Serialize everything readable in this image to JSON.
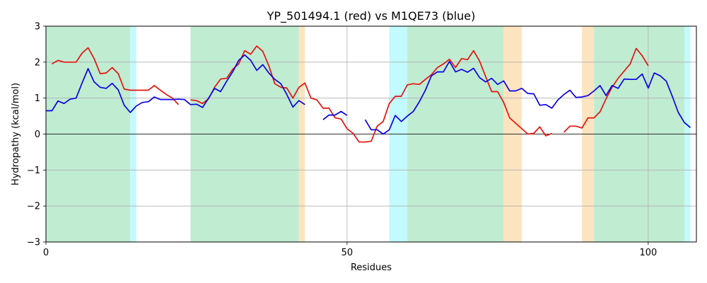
{
  "chart_data": {
    "type": "line",
    "title": "YP_501494.1 (red) vs M1QE73 (blue)",
    "xlabel": "Residues",
    "ylabel": "Hydropathy (kcal/mol)",
    "xlim": [
      0,
      108
    ],
    "ylim": [
      -3,
      3
    ],
    "x_ticks": [
      0,
      50,
      100
    ],
    "y_ticks": [
      -3,
      -2,
      -1,
      0,
      1,
      2,
      3
    ],
    "grid": true,
    "zero_line": true,
    "regions": [
      {
        "start": 0,
        "end": 14,
        "color": "#c0ecd2"
      },
      {
        "start": 14,
        "end": 15,
        "color": "#c2fafe"
      },
      {
        "start": 24,
        "end": 42,
        "color": "#c0ecd2"
      },
      {
        "start": 42,
        "end": 43,
        "color": "#fde4c0"
      },
      {
        "start": 57,
        "end": 60,
        "color": "#c2fafe"
      },
      {
        "start": 60,
        "end": 76,
        "color": "#c0ecd2"
      },
      {
        "start": 76,
        "end": 79,
        "color": "#fde4c0"
      },
      {
        "start": 89,
        "end": 91,
        "color": "#fde4c0"
      },
      {
        "start": 91,
        "end": 106,
        "color": "#c0ecd2"
      },
      {
        "start": 106,
        "end": 107,
        "color": "#c2fafe"
      }
    ],
    "series": [
      {
        "name": "red",
        "color": "#e8120c",
        "x": [
          1,
          2,
          3,
          4,
          5,
          6,
          7,
          8,
          9,
          10,
          11,
          12,
          13,
          14,
          15,
          16,
          17,
          18,
          19,
          20,
          21,
          22,
          null,
          24,
          25,
          26,
          27,
          28,
          29,
          30,
          31,
          32,
          33,
          34,
          35,
          36,
          37,
          38,
          39,
          40,
          41,
          42,
          43,
          44,
          45,
          46,
          47,
          48,
          49,
          50,
          51,
          52,
          53,
          54,
          55,
          56,
          57,
          58,
          59,
          60,
          61,
          62,
          63,
          64,
          65,
          66,
          67,
          68,
          69,
          70,
          71,
          72,
          73,
          74,
          75,
          76,
          77,
          78,
          79,
          80,
          81,
          82,
          83,
          84,
          null,
          86,
          87,
          88,
          89,
          90,
          91,
          92,
          93,
          94,
          95,
          96,
          97,
          98,
          99,
          100
        ],
        "y": [
          1.95,
          2.05,
          2.0,
          2.0,
          2.0,
          2.25,
          2.4,
          2.1,
          1.68,
          1.7,
          1.85,
          1.68,
          1.25,
          1.22,
          1.22,
          1.22,
          1.22,
          1.35,
          1.22,
          1.1,
          1.0,
          0.82,
          null,
          0.95,
          0.93,
          0.85,
          0.98,
          1.3,
          1.53,
          1.55,
          1.8,
          1.95,
          2.32,
          2.22,
          2.45,
          2.3,
          1.9,
          1.4,
          1.3,
          1.28,
          1.0,
          1.3,
          1.42,
          1.0,
          0.95,
          0.72,
          0.72,
          0.45,
          0.42,
          0.15,
          0.02,
          -0.22,
          -0.22,
          -0.2,
          0.22,
          0.35,
          0.85,
          1.05,
          1.05,
          1.37,
          1.4,
          1.38,
          1.52,
          1.65,
          1.85,
          1.95,
          2.08,
          1.85,
          2.1,
          2.07,
          2.32,
          2.03,
          1.6,
          1.18,
          1.18,
          0.88,
          0.45,
          0.3,
          0.15,
          0.0,
          0.02,
          0.2,
          -0.05,
          0.02,
          null,
          0.05,
          0.22,
          0.22,
          0.17,
          0.45,
          0.45,
          0.62,
          0.98,
          1.3,
          1.55,
          1.75,
          1.95,
          2.38,
          2.18,
          1.9
        ]
      },
      {
        "name": "blue",
        "color": "#0a00e8",
        "x": [
          0,
          1,
          2,
          3,
          4,
          5,
          6,
          7,
          8,
          9,
          10,
          11,
          12,
          13,
          14,
          15,
          16,
          17,
          18,
          19,
          20,
          21,
          22,
          23,
          24,
          25,
          26,
          27,
          28,
          29,
          30,
          31,
          32,
          33,
          34,
          35,
          36,
          37,
          38,
          39,
          40,
          41,
          42,
          43,
          null,
          46,
          47,
          48,
          49,
          50,
          null,
          53,
          54,
          55,
          56,
          57,
          58,
          59,
          60,
          61,
          62,
          63,
          64,
          65,
          66,
          67,
          68,
          69,
          70,
          71,
          72,
          73,
          74,
          75,
          76,
          77,
          78,
          79,
          80,
          81,
          82,
          83,
          84,
          85,
          86,
          87,
          88,
          89,
          90,
          91,
          92,
          93,
          94,
          95,
          96,
          97,
          98,
          99,
          100,
          101,
          102,
          103,
          104,
          105,
          106,
          107
        ],
        "y": [
          0.65,
          0.65,
          0.92,
          0.85,
          0.97,
          1.0,
          1.42,
          1.82,
          1.45,
          1.3,
          1.27,
          1.41,
          1.23,
          0.8,
          0.6,
          0.78,
          0.88,
          0.9,
          1.03,
          0.96,
          0.96,
          0.96,
          0.97,
          0.96,
          0.82,
          0.83,
          0.74,
          1.0,
          1.27,
          1.18,
          1.47,
          1.73,
          2.05,
          2.2,
          2.05,
          1.77,
          1.93,
          1.7,
          1.52,
          1.4,
          1.1,
          0.75,
          0.93,
          0.82,
          null,
          0.4,
          0.53,
          0.53,
          0.63,
          0.52,
          null,
          0.4,
          0.12,
          0.12,
          0.0,
          0.12,
          0.52,
          0.35,
          0.5,
          0.63,
          0.9,
          1.22,
          1.62,
          1.73,
          1.73,
          2.02,
          1.73,
          1.8,
          1.72,
          1.83,
          1.57,
          1.45,
          1.55,
          1.38,
          1.48,
          1.2,
          1.2,
          1.27,
          1.13,
          1.12,
          0.8,
          0.82,
          0.72,
          0.95,
          1.1,
          1.22,
          1.02,
          1.03,
          1.07,
          1.2,
          1.35,
          1.07,
          1.35,
          1.27,
          1.53,
          1.52,
          1.52,
          1.67,
          1.28,
          1.7,
          1.62,
          1.47,
          1.05,
          0.6,
          0.32,
          0.18
        ]
      }
    ]
  }
}
